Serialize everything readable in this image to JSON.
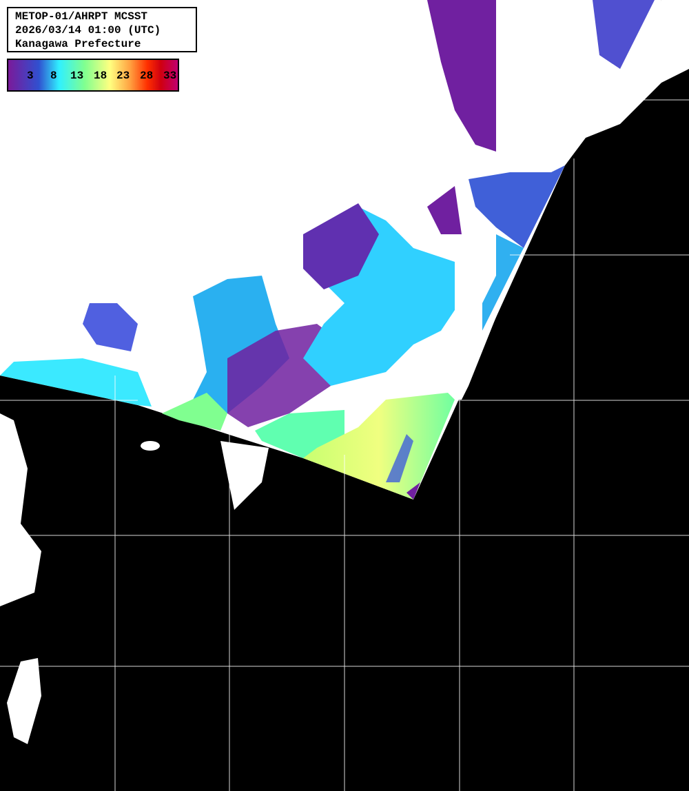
{
  "title": {
    "line1": "METOP-01/AHRPT MCSST",
    "line2": "2026/03/14 01:00 (UTC)",
    "line3": "Kanagawa Prefecture"
  },
  "legend": {
    "ticks": [
      "3",
      "8",
      "13",
      "18",
      "23",
      "28",
      "33"
    ],
    "colors": [
      "#7a1a9a",
      "#3050d0",
      "#30f0ff",
      "#80ff90",
      "#ffff80",
      "#ffa040",
      "#ff3000",
      "#d00010",
      "#c00070"
    ]
  },
  "map": {
    "sea_color": "#000000",
    "land_cloud_color": "#ffffff",
    "grid_color": "#ffffff"
  }
}
